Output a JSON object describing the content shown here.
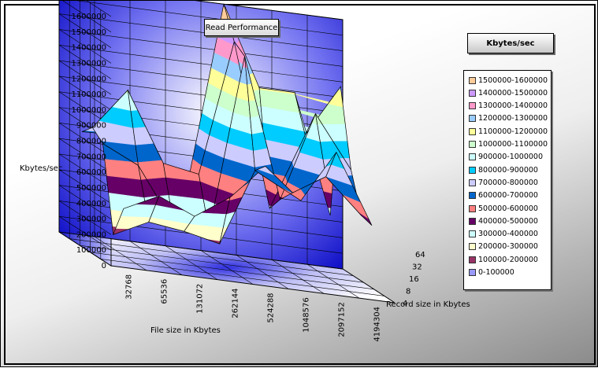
{
  "chart_data": {
    "type": "surface3d",
    "title": "Read Performance",
    "zlabel": "Kbytes/sec",
    "xlabel": "File size in Kbytes",
    "ylabel": "Record size in Kbytes",
    "legend_title": "Kbytes/sec",
    "z_ticks": [
      "0",
      "100000",
      "200000",
      "300000",
      "400000",
      "500000",
      "600000",
      "700000",
      "800000",
      "900000",
      "1000000",
      "1100000",
      "1200000",
      "1300000",
      "1400000",
      "1500000",
      "1600000"
    ],
    "zlim": [
      0,
      1600000
    ],
    "x_categories": [
      "32768",
      "65536",
      "131072",
      "262144",
      "524288",
      "1048576",
      "2097152",
      "4194304"
    ],
    "y_categories": [
      "4",
      "8",
      "16",
      "32",
      "64"
    ],
    "values": [
      [
        360000,
        470000,
        370000,
        520000,
        750000,
        560000,
        900000,
        460000
      ],
      [
        150000,
        260000,
        230000,
        180000,
        680000,
        560000,
        700000,
        480000
      ],
      [
        690000,
        580000,
        230000,
        220000,
        1370000,
        480000,
        1060000,
        730000
      ],
      [
        750000,
        1020000,
        580000,
        540000,
        1420000,
        380000,
        880000,
        1220000
      ],
      [
        680000,
        690000,
        490000,
        460000,
        1620000,
        1110000,
        1110000,
        350000
      ]
    ],
    "bands": [
      {
        "label": "1500000-1600000",
        "color": "#ffcc99"
      },
      {
        "label": "1400000-1500000",
        "color": "#cc99ff"
      },
      {
        "label": "1300000-1400000",
        "color": "#ff99cc"
      },
      {
        "label": "1200000-1300000",
        "color": "#99ccff"
      },
      {
        "label": "1100000-1200000",
        "color": "#ffff99"
      },
      {
        "label": "1000000-1100000",
        "color": "#ccffcc"
      },
      {
        "label": "900000-1000000",
        "color": "#ccffff"
      },
      {
        "label": "800000-900000",
        "color": "#00ccff"
      },
      {
        "label": "700000-800000",
        "color": "#ccccff"
      },
      {
        "label": "600000-700000",
        "color": "#0066cc"
      },
      {
        "label": "500000-600000",
        "color": "#ff8080"
      },
      {
        "label": "400000-500000",
        "color": "#660066"
      },
      {
        "label": "300000-400000",
        "color": "#ccffff"
      },
      {
        "label": "200000-300000",
        "color": "#ffffcc"
      },
      {
        "label": "100000-200000",
        "color": "#993366"
      },
      {
        "label": "0-100000",
        "color": "#9999ff"
      }
    ]
  }
}
